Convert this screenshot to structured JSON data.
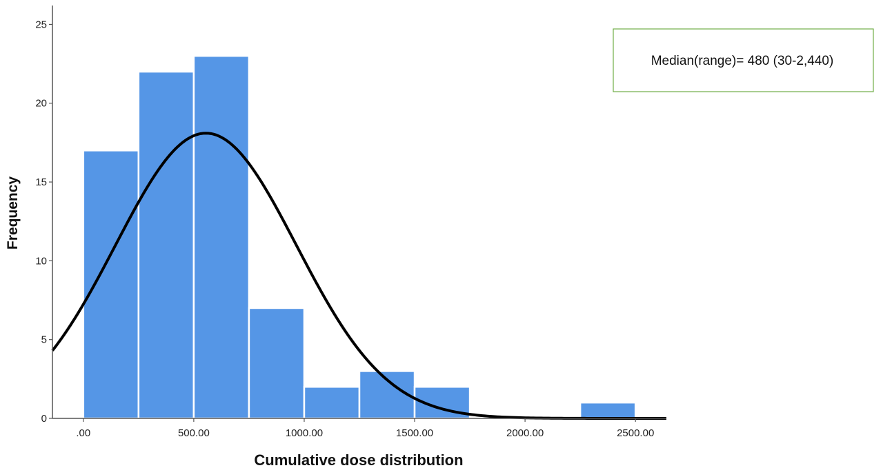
{
  "chart_data": {
    "type": "histogram",
    "xlabel": "Cumulative dose distribution",
    "ylabel": "Frequency",
    "bin_edges": [
      0,
      250,
      500,
      750,
      1000,
      1250,
      1500,
      1750,
      2000,
      2250,
      2500
    ],
    "values": [
      17,
      22,
      23,
      7,
      2,
      3,
      2,
      0,
      0,
      1
    ],
    "x_ticks": [
      0,
      500,
      1000,
      1500,
      2000,
      2500
    ],
    "x_tick_labels": [
      ".00",
      "500.00",
      "1000.00",
      "1500.00",
      "2000.00",
      "2500.00"
    ],
    "y_ticks": [
      0,
      5,
      10,
      15,
      20,
      25
    ],
    "y_tick_labels": [
      "0",
      "5",
      "10",
      "15",
      "20",
      "25"
    ],
    "xlim": [
      -140,
      2640
    ],
    "ylim": [
      0,
      26.2
    ],
    "grid": false,
    "normal_curve": {
      "mean": 555,
      "sd": 410,
      "peak": 18.1
    },
    "annotation": "Median(range)= 480 (30-2,440)",
    "bar_color": "#5596E6",
    "curve_color": "#000000",
    "annotation_border_color": "#70AD47"
  }
}
